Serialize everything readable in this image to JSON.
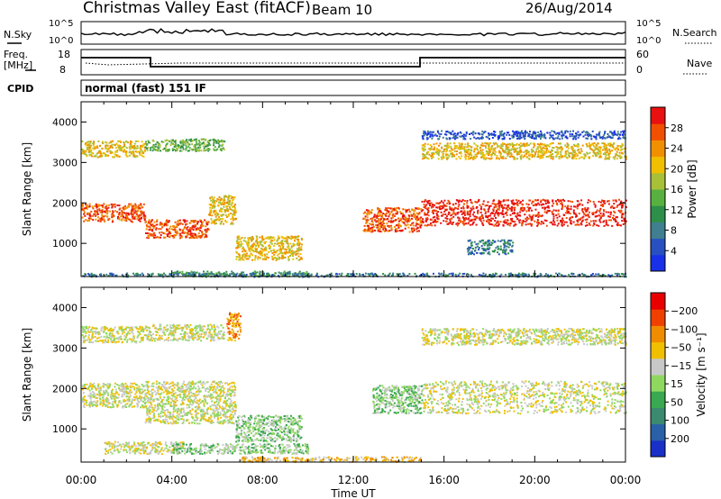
{
  "header": {
    "site": "Christmas Valley East (fitACF)",
    "beam": "Beam 10",
    "date": "26/Aug/2014"
  },
  "top_panels": {
    "nsky_label": "N.Sky",
    "nsearch_label": "N.Search",
    "nsky_ticks": [
      "10^5",
      "10^0"
    ],
    "nsearch_ticks": [
      "10^5",
      "10^0"
    ],
    "freq_label_1": "Freq.",
    "freq_label_2": "[MHz]",
    "freq_ticks": [
      "18",
      "8"
    ],
    "nave_label": "Nave",
    "nave_ticks": [
      "60",
      "0"
    ],
    "cpid_label": "CPID",
    "cpid_text": "normal (fast) 151 IF"
  },
  "chart_data": [
    {
      "type": "heatmap",
      "title": "",
      "xlabel": "",
      "ylabel": "Slant Range [km]",
      "x_ticks": [
        "00:00",
        "04:00",
        "08:00",
        "12:00",
        "16:00",
        "20:00",
        "00:00"
      ],
      "y_ticks": [
        1000,
        2000,
        3000,
        4000
      ],
      "ylim": [
        180,
        4500
      ],
      "xlim_hours": [
        0,
        24
      ],
      "colorbar": {
        "label": "Power [dB]",
        "ticks": [
          4,
          8,
          12,
          16,
          20,
          24,
          28
        ],
        "colors": [
          "#1830e8",
          "#2850c0",
          "#3f7f8f",
          "#2e8f4a",
          "#58b040",
          "#a8c038",
          "#f0c000",
          "#f09000",
          "#f05000",
          "#e81010"
        ]
      },
      "regions": [
        {
          "x": [
            0.0,
            2.8
          ],
          "y": [
            1550,
            2000
          ],
          "level": 8
        },
        {
          "x": [
            0.0,
            2.8
          ],
          "y": [
            3150,
            3550
          ],
          "level": 6
        },
        {
          "x": [
            2.8,
            5.6
          ],
          "y": [
            1150,
            1600
          ],
          "level": 8
        },
        {
          "x": [
            2.8,
            6.3
          ],
          "y": [
            3300,
            3600
          ],
          "level": 4
        },
        {
          "x": [
            5.6,
            6.8
          ],
          "y": [
            1500,
            2200
          ],
          "level": 6
        },
        {
          "x": [
            6.8,
            9.7
          ],
          "y": [
            600,
            1200
          ],
          "level": 6
        },
        {
          "x": [
            4.0,
            10.0
          ],
          "y": [
            200,
            330
          ],
          "level": 3
        },
        {
          "x": [
            12.4,
            15.0
          ],
          "y": [
            1300,
            1900
          ],
          "level": 8
        },
        {
          "x": [
            15.0,
            24.0
          ],
          "y": [
            1450,
            2100
          ],
          "level": 9
        },
        {
          "x": [
            15.0,
            24.0
          ],
          "y": [
            3100,
            3500
          ],
          "level": 6
        },
        {
          "x": [
            15.0,
            24.0
          ],
          "y": [
            3600,
            3800
          ],
          "level": 1
        },
        {
          "x": [
            17.0,
            19.0
          ],
          "y": [
            750,
            1100
          ],
          "level": 2
        },
        {
          "x": [
            0.0,
            24.0
          ],
          "y": [
            190,
            280
          ],
          "level": 2
        }
      ]
    },
    {
      "type": "heatmap",
      "title": "",
      "xlabel": "Time UT",
      "ylabel": "Slant Range [km]",
      "x_ticks": [
        "00:00",
        "04:00",
        "08:00",
        "12:00",
        "16:00",
        "20:00",
        "00:00"
      ],
      "y_ticks": [
        1000,
        2000,
        3000,
        4000
      ],
      "ylim": [
        180,
        4500
      ],
      "xlim_hours": [
        0,
        24
      ],
      "colorbar": {
        "label": "Velocity [m s⁻¹]",
        "ticks": [
          "200",
          "100",
          "50",
          "15",
          "−15",
          "−50",
          "−100",
          "−200"
        ],
        "colors": [
          "#1830c8",
          "#2a60a8",
          "#3a8a70",
          "#3aa850",
          "#8fd860",
          "#c8c8c8",
          "#f0c000",
          "#f08c00",
          "#f04000",
          "#e80000"
        ]
      },
      "regions": [
        {
          "x": [
            0.0,
            2.8
          ],
          "y": [
            1550,
            2150
          ],
          "level": 5
        },
        {
          "x": [
            0.0,
            2.8
          ],
          "y": [
            3150,
            3550
          ],
          "level": 5
        },
        {
          "x": [
            2.8,
            6.8
          ],
          "y": [
            1150,
            2200
          ],
          "level": 5
        },
        {
          "x": [
            2.8,
            6.3
          ],
          "y": [
            3200,
            3600
          ],
          "level": 5
        },
        {
          "x": [
            6.4,
            7.0
          ],
          "y": [
            3200,
            3900
          ],
          "level": 7
        },
        {
          "x": [
            6.8,
            9.7
          ],
          "y": [
            700,
            1350
          ],
          "level": 4
        },
        {
          "x": [
            1.0,
            4.5
          ],
          "y": [
            400,
            700
          ],
          "level": 5
        },
        {
          "x": [
            4.0,
            10.0
          ],
          "y": [
            400,
            650
          ],
          "level": 4
        },
        {
          "x": [
            7.0,
            15.0
          ],
          "y": [
            200,
            330
          ],
          "level": 6
        },
        {
          "x": [
            12.8,
            15.0
          ],
          "y": [
            1400,
            2100
          ],
          "level": 4
        },
        {
          "x": [
            15.0,
            24.0
          ],
          "y": [
            1400,
            2200
          ],
          "level": 5
        },
        {
          "x": [
            15.0,
            24.0
          ],
          "y": [
            3100,
            3500
          ],
          "level": 5
        }
      ]
    }
  ]
}
